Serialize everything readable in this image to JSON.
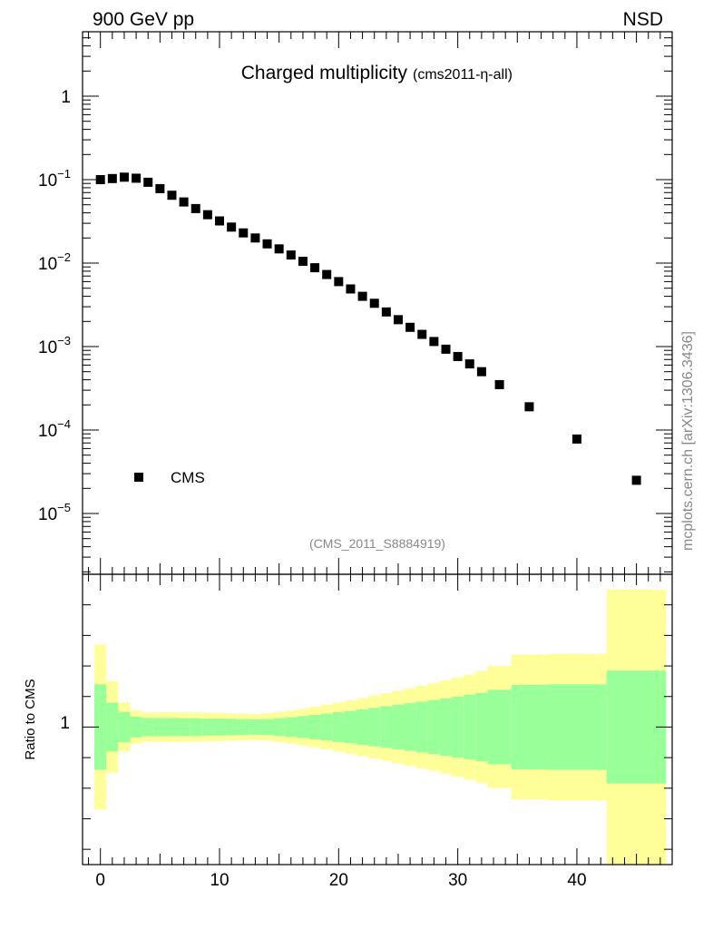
{
  "header": {
    "energy_label": "900 GeV pp",
    "process_label": "NSD"
  },
  "side_label": "mcplots.cern.ch [arXiv:1306.3436]",
  "colors": {
    "marker": "#000000",
    "band_inner": "#99ff99",
    "band_outer": "#ffff99",
    "axis": "#000000",
    "muted_text": "#888888"
  },
  "chart_data": [
    {
      "type": "scatter",
      "title": "Charged multiplicity",
      "subtitle": "(cms2011-η-all)",
      "analysis_label": "(CMS_2011_S8884919)",
      "xlim": [
        -1.5,
        48
      ],
      "ylim": [
        2.5e-06,
        5
      ],
      "yscale": "log",
      "ytick_labels": [
        "1",
        "10",
        "10",
        "10",
        "10",
        "10"
      ],
      "ytick_exponents": [
        "",
        "−1",
        "−2",
        "−3",
        "−4",
        "−5"
      ],
      "legend": {
        "position": "bottom-left",
        "entries": [
          "CMS"
        ]
      },
      "series": [
        {
          "name": "CMS",
          "points": [
            [
              0,
              0.1
            ],
            [
              1,
              0.103
            ],
            [
              2,
              0.107
            ],
            [
              3,
              0.104
            ],
            [
              4,
              0.093
            ],
            [
              5,
              0.078
            ],
            [
              6,
              0.065
            ],
            [
              7,
              0.054
            ],
            [
              8,
              0.045
            ],
            [
              9,
              0.038
            ],
            [
              10,
              0.032
            ],
            [
              11,
              0.027
            ],
            [
              12,
              0.023
            ],
            [
              13,
              0.02
            ],
            [
              14,
              0.017
            ],
            [
              15,
              0.0148
            ],
            [
              16,
              0.0125
            ],
            [
              17,
              0.0105
            ],
            [
              18,
              0.0088
            ],
            [
              19,
              0.0073
            ],
            [
              20,
              0.006
            ],
            [
              21,
              0.0049
            ],
            [
              22,
              0.004
            ],
            [
              23,
              0.0033
            ],
            [
              24,
              0.0026
            ],
            [
              25,
              0.0021
            ],
            [
              26,
              0.0017
            ],
            [
              27,
              0.0014
            ],
            [
              28,
              0.00115
            ],
            [
              29,
              0.00093
            ],
            [
              30,
              0.00076
            ],
            [
              31,
              0.00062
            ],
            [
              32,
              0.0005
            ],
            [
              33.5,
              0.00035
            ],
            [
              36,
              0.00019
            ],
            [
              40,
              7.8e-05
            ],
            [
              45,
              2.5e-05
            ]
          ]
        }
      ]
    },
    {
      "type": "area",
      "ylabel": "Ratio to CMS",
      "xlim": [
        -1.5,
        48
      ],
      "ylim": [
        0.55,
        1.5
      ],
      "ytick_labels": [
        "1"
      ],
      "xtick_labels": [
        "0",
        "10",
        "20",
        "30",
        "40"
      ],
      "bins": [
        {
          "lo": -0.5,
          "hi": 0.5,
          "inner": [
            0.86,
            1.14
          ],
          "outer": [
            0.73,
            1.27
          ]
        },
        {
          "lo": 0.5,
          "hi": 1.5,
          "inner": [
            0.92,
            1.08
          ],
          "outer": [
            0.85,
            1.15
          ]
        },
        {
          "lo": 1.5,
          "hi": 2.5,
          "inner": [
            0.95,
            1.05
          ],
          "outer": [
            0.92,
            1.08
          ]
        },
        {
          "lo": 2.5,
          "hi": 3.5,
          "inner": [
            0.966,
            1.034
          ],
          "outer": [
            0.945,
            1.055
          ]
        },
        {
          "lo": 3.5,
          "hi": 4.5,
          "inner": [
            0.97,
            1.03
          ],
          "outer": [
            0.952,
            1.048
          ]
        },
        {
          "lo": 4.5,
          "hi": 5.5,
          "inner": [
            0.97,
            1.03
          ],
          "outer": [
            0.952,
            1.048
          ]
        },
        {
          "lo": 5.5,
          "hi": 6.5,
          "inner": [
            0.97,
            1.03
          ],
          "outer": [
            0.951,
            1.049
          ]
        },
        {
          "lo": 6.5,
          "hi": 7.5,
          "inner": [
            0.971,
            1.029
          ],
          "outer": [
            0.952,
            1.048
          ]
        },
        {
          "lo": 7.5,
          "hi": 8.5,
          "inner": [
            0.971,
            1.029
          ],
          "outer": [
            0.952,
            1.048
          ]
        },
        {
          "lo": 8.5,
          "hi": 9.5,
          "inner": [
            0.972,
            1.028
          ],
          "outer": [
            0.953,
            1.047
          ]
        },
        {
          "lo": 9.5,
          "hi": 10.5,
          "inner": [
            0.972,
            1.028
          ],
          "outer": [
            0.954,
            1.046
          ]
        },
        {
          "lo": 10.5,
          "hi": 11.5,
          "inner": [
            0.973,
            1.027
          ],
          "outer": [
            0.955,
            1.045
          ]
        },
        {
          "lo": 11.5,
          "hi": 12.5,
          "inner": [
            0.974,
            1.026
          ],
          "outer": [
            0.956,
            1.044
          ]
        },
        {
          "lo": 12.5,
          "hi": 13.5,
          "inner": [
            0.975,
            1.025
          ],
          "outer": [
            0.957,
            1.043
          ]
        },
        {
          "lo": 13.5,
          "hi": 14.5,
          "inner": [
            0.974,
            1.026
          ],
          "outer": [
            0.955,
            1.045
          ]
        },
        {
          "lo": 14.5,
          "hi": 15.5,
          "inner": [
            0.971,
            1.029
          ],
          "outer": [
            0.951,
            1.049
          ]
        },
        {
          "lo": 15.5,
          "hi": 16.5,
          "inner": [
            0.968,
            1.032
          ],
          "outer": [
            0.946,
            1.054
          ]
        },
        {
          "lo": 16.5,
          "hi": 17.5,
          "inner": [
            0.964,
            1.036
          ],
          "outer": [
            0.94,
            1.06
          ]
        },
        {
          "lo": 17.5,
          "hi": 18.5,
          "inner": [
            0.96,
            1.04
          ],
          "outer": [
            0.934,
            1.066
          ]
        },
        {
          "lo": 18.5,
          "hi": 19.5,
          "inner": [
            0.956,
            1.044
          ],
          "outer": [
            0.927,
            1.073
          ]
        },
        {
          "lo": 19.5,
          "hi": 20.5,
          "inner": [
            0.951,
            1.049
          ],
          "outer": [
            0.92,
            1.08
          ]
        },
        {
          "lo": 20.5,
          "hi": 21.5,
          "inner": [
            0.947,
            1.053
          ],
          "outer": [
            0.913,
            1.087
          ]
        },
        {
          "lo": 21.5,
          "hi": 22.5,
          "inner": [
            0.942,
            1.058
          ],
          "outer": [
            0.905,
            1.095
          ]
        },
        {
          "lo": 22.5,
          "hi": 23.5,
          "inner": [
            0.937,
            1.063
          ],
          "outer": [
            0.897,
            1.103
          ]
        },
        {
          "lo": 23.5,
          "hi": 24.5,
          "inner": [
            0.932,
            1.068
          ],
          "outer": [
            0.889,
            1.111
          ]
        },
        {
          "lo": 24.5,
          "hi": 25.5,
          "inner": [
            0.927,
            1.073
          ],
          "outer": [
            0.881,
            1.119
          ]
        },
        {
          "lo": 25.5,
          "hi": 26.5,
          "inner": [
            0.922,
            1.078
          ],
          "outer": [
            0.873,
            1.127
          ]
        },
        {
          "lo": 26.5,
          "hi": 27.5,
          "inner": [
            0.917,
            1.083
          ],
          "outer": [
            0.865,
            1.135
          ]
        },
        {
          "lo": 27.5,
          "hi": 28.5,
          "inner": [
            0.912,
            1.088
          ],
          "outer": [
            0.857,
            1.143
          ]
        },
        {
          "lo": 28.5,
          "hi": 29.5,
          "inner": [
            0.906,
            1.094
          ],
          "outer": [
            0.847,
            1.153
          ]
        },
        {
          "lo": 29.5,
          "hi": 30.5,
          "inner": [
            0.9,
            1.1
          ],
          "outer": [
            0.838,
            1.162
          ]
        },
        {
          "lo": 30.5,
          "hi": 31.5,
          "inner": [
            0.894,
            1.106
          ],
          "outer": [
            0.828,
            1.172
          ]
        },
        {
          "lo": 31.5,
          "hi": 32.5,
          "inner": [
            0.888,
            1.112
          ],
          "outer": [
            0.817,
            1.183
          ]
        },
        {
          "lo": 32.5,
          "hi": 34.5,
          "inner": [
            0.878,
            1.122
          ],
          "outer": [
            0.8,
            1.2
          ]
        },
        {
          "lo": 34.5,
          "hi": 37.5,
          "inner": [
            0.862,
            1.138
          ],
          "outer": [
            0.763,
            1.237
          ]
        },
        {
          "lo": 37.5,
          "hi": 42.5,
          "inner": [
            0.86,
            1.14
          ],
          "outer": [
            0.76,
            1.24
          ]
        },
        {
          "lo": 42.5,
          "hi": 47.5,
          "inner": [
            0.815,
            1.185
          ],
          "outer": [
            0.55,
            1.45
          ]
        }
      ]
    }
  ]
}
